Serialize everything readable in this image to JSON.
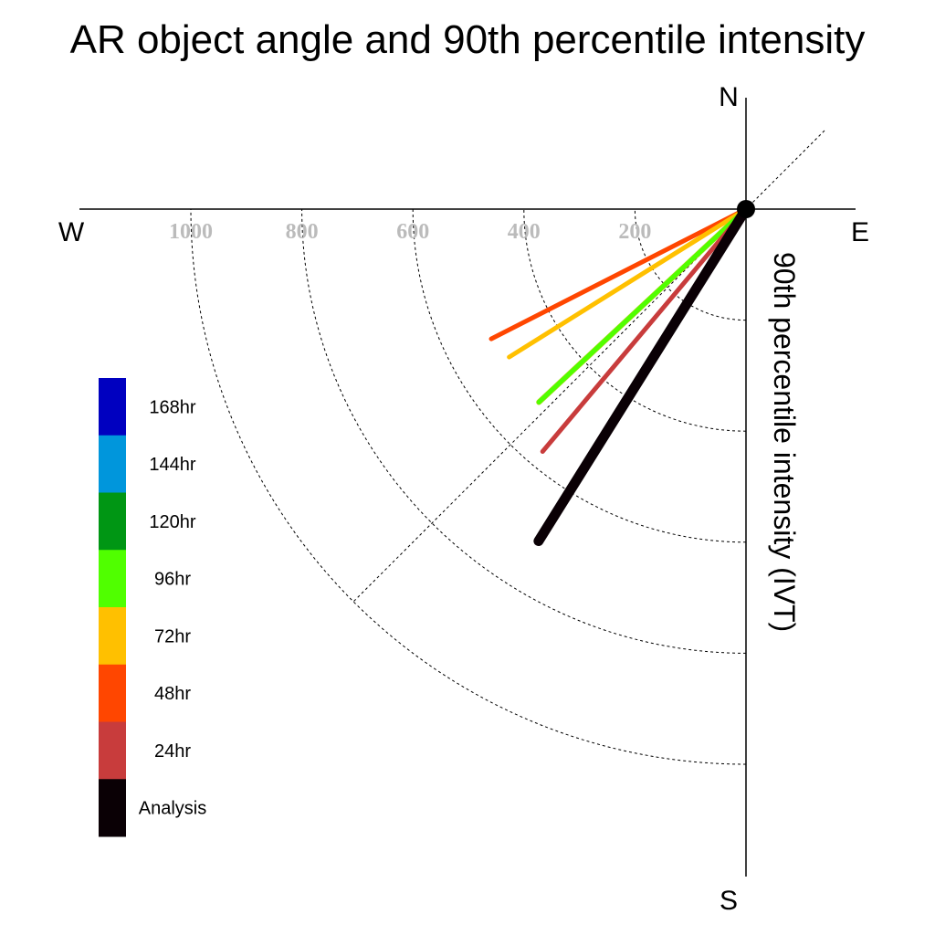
{
  "chart_data": {
    "type": "polar",
    "title": "AR object angle and 90th percentile intensity",
    "ylabel": "90th percentile intensity (IVT)",
    "directions": {
      "north": "N",
      "south": "S",
      "east": "E",
      "west": "W"
    },
    "radial_ticks": [
      200,
      400,
      600,
      800,
      1000
    ],
    "radial_tick_labels": [
      "200",
      "400",
      "600",
      "800",
      "1000"
    ],
    "rlim": [
      0,
      1000
    ],
    "grid": true,
    "legend": "left",
    "legend_entries": [
      {
        "label": "168hr",
        "color": "#0000c0"
      },
      {
        "label": "144hr",
        "color": "#0096dc"
      },
      {
        "label": "120hr",
        "color": "#009614"
      },
      {
        "label": "96hr",
        "color": "#50ff00"
      },
      {
        "label": "72hr",
        "color": "#ffc000"
      },
      {
        "label": "48hr",
        "color": "#ff4600"
      },
      {
        "label": "24hr",
        "color": "#c83c3c"
      },
      {
        "label": "Analysis",
        "color": "#0a0005"
      }
    ],
    "series": [
      {
        "name": "48hr",
        "color": "#ff4600",
        "direction_deg": 243,
        "intensity": 515,
        "width": 5
      },
      {
        "name": "72hr",
        "color": "#ffc000",
        "direction_deg": 238,
        "intensity": 503,
        "width": 5
      },
      {
        "name": "96hr",
        "color": "#50ff00",
        "direction_deg": 227,
        "intensity": 510,
        "width": 5
      },
      {
        "name": "24hr",
        "color": "#c83c3c",
        "direction_deg": 220,
        "intensity": 570,
        "width": 5
      },
      {
        "name": "Analysis",
        "color": "#0a0005",
        "direction_deg": 212,
        "intensity": 705,
        "width": 11
      }
    ],
    "reference_lines_deg": [
      45,
      225
    ]
  }
}
